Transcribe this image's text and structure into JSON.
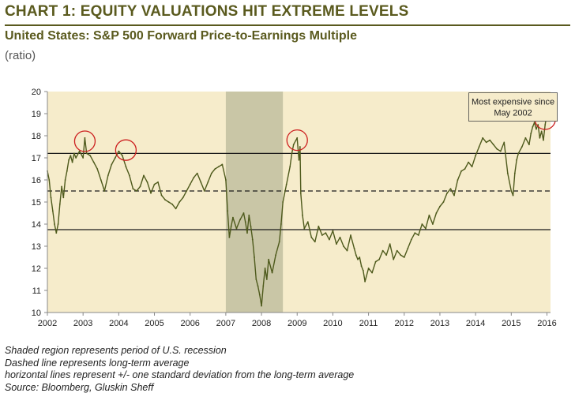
{
  "header": {
    "title": "CHART 1: EQUITY VALUATIONS HIT EXTREME LEVELS",
    "subtitle": "United States:  S&P 500 Forward Price-to-Earnings Multiple",
    "unit": "(ratio)"
  },
  "colors": {
    "plot_background": "#f6eccb",
    "recession_shade": "#c9c6a6",
    "series_line": "#4e5a1c",
    "reference_lines": "#1a1a1a",
    "highlight_circles": "#cc1f1f",
    "title_text": "#5a5a1e"
  },
  "chart_data": {
    "type": "line",
    "title": "United States:  S&P 500 Forward Price-to-Earnings Multiple",
    "ylabel": "(ratio)",
    "xlabel": "",
    "xlim": [
      2002,
      2016.1
    ],
    "ylim": [
      10,
      20
    ],
    "x_ticks": [
      "2002",
      "2003",
      "2004",
      "2005",
      "2006",
      "2007",
      "2008",
      "2009",
      "2010",
      "2011",
      "2012",
      "2013",
      "2014",
      "2015",
      "2016"
    ],
    "y_ticks": [
      "10",
      "11",
      "12",
      "13",
      "14",
      "15",
      "16",
      "17",
      "18",
      "19",
      "20"
    ],
    "grid": false,
    "recession": {
      "start": 2007.0,
      "end": 2008.6
    },
    "reference_lines": {
      "long_term_average": 15.5,
      "upper_one_std": 17.2,
      "lower_one_std": 13.75
    },
    "highlights": [
      {
        "x": 2003.05,
        "y": 17.75
      },
      {
        "x": 2004.2,
        "y": 17.35
      },
      {
        "x": 2009.0,
        "y": 17.8
      },
      {
        "x": 2015.95,
        "y": 18.75
      }
    ],
    "annotation": {
      "text": [
        "Most expensive since",
        "May 2002"
      ],
      "x": 2015.05,
      "y": 19.3
    },
    "series": [
      {
        "x": [
          2002.0,
          2002.05,
          2002.1,
          2002.15,
          2002.2,
          2002.25,
          2002.3,
          2002.35,
          2002.4,
          2002.45,
          2002.5,
          2002.55,
          2002.6,
          2002.65,
          2002.7,
          2002.75,
          2002.8,
          2002.9,
          2003.0,
          2003.05,
          2003.1,
          2003.2,
          2003.3,
          2003.4,
          2003.5,
          2003.6,
          2003.7,
          2003.8,
          2003.9,
          2004.0,
          2004.1,
          2004.2,
          2004.3,
          2004.4,
          2004.5,
          2004.6,
          2004.7,
          2004.8,
          2004.9,
          2005.0,
          2005.1,
          2005.2,
          2005.3,
          2005.4,
          2005.5,
          2005.6,
          2005.7,
          2005.8,
          2005.9,
          2006.0,
          2006.1,
          2006.2,
          2006.3,
          2006.4,
          2006.5,
          2006.6,
          2006.7,
          2006.8,
          2006.9,
          2007.0,
          2007.05,
          2007.1,
          2007.15,
          2007.2,
          2007.3,
          2007.4,
          2007.5,
          2007.55,
          2007.6,
          2007.65,
          2007.7,
          2007.75,
          2007.8,
          2007.85,
          2007.9,
          2007.95,
          2008.0,
          2008.05,
          2008.1,
          2008.15,
          2008.2,
          2008.3,
          2008.4,
          2008.5,
          2008.55,
          2008.6,
          2008.7,
          2008.8,
          2008.85,
          2008.9,
          2009.0,
          2009.05,
          2009.08,
          2009.1,
          2009.15,
          2009.2,
          2009.3,
          2009.4,
          2009.5,
          2009.6,
          2009.7,
          2009.8,
          2009.9,
          2010.0,
          2010.1,
          2010.2,
          2010.3,
          2010.4,
          2010.5,
          2010.6,
          2010.65,
          2010.7,
          2010.75,
          2010.8,
          2010.85,
          2010.9,
          2011.0,
          2011.1,
          2011.2,
          2011.3,
          2011.4,
          2011.5,
          2011.6,
          2011.7,
          2011.8,
          2011.9,
          2012.0,
          2012.1,
          2012.2,
          2012.3,
          2012.4,
          2012.5,
          2012.6,
          2012.7,
          2012.8,
          2012.9,
          2013.0,
          2013.1,
          2013.2,
          2013.3,
          2013.4,
          2013.5,
          2013.6,
          2013.7,
          2013.8,
          2013.9,
          2014.0,
          2014.1,
          2014.2,
          2014.3,
          2014.4,
          2014.5,
          2014.6,
          2014.7,
          2014.8,
          2014.9,
          2015.0,
          2015.05,
          2015.1,
          2015.15,
          2015.2,
          2015.3,
          2015.4,
          2015.5,
          2015.55,
          2015.6,
          2015.65,
          2015.7,
          2015.75,
          2015.8,
          2015.85,
          2015.9,
          2015.95,
          2016.0
        ],
        "values": [
          16.4,
          16.0,
          15.2,
          14.6,
          14.0,
          13.6,
          14.0,
          14.9,
          15.7,
          15.2,
          16.0,
          16.4,
          16.9,
          17.1,
          16.8,
          17.2,
          17.0,
          17.3,
          17.0,
          17.9,
          17.2,
          17.1,
          16.8,
          16.5,
          16.0,
          15.5,
          16.2,
          16.7,
          17.0,
          17.3,
          17.1,
          16.6,
          16.2,
          15.6,
          15.5,
          15.7,
          16.2,
          15.9,
          15.4,
          15.8,
          15.9,
          15.3,
          15.1,
          15.0,
          14.9,
          14.7,
          15.0,
          15.2,
          15.5,
          15.8,
          16.1,
          16.3,
          15.9,
          15.5,
          15.9,
          16.3,
          16.5,
          16.6,
          16.7,
          16.0,
          14.6,
          13.4,
          13.9,
          14.3,
          13.8,
          14.2,
          14.5,
          14.1,
          13.6,
          14.4,
          13.9,
          13.3,
          12.5,
          11.5,
          11.2,
          10.8,
          10.3,
          11.2,
          12.0,
          11.5,
          12.4,
          11.8,
          12.6,
          13.2,
          14.0,
          15.0,
          15.8,
          16.6,
          17.2,
          17.6,
          17.9,
          16.9,
          17.5,
          15.4,
          14.4,
          13.8,
          14.1,
          13.4,
          13.2,
          13.9,
          13.5,
          13.6,
          13.3,
          13.7,
          13.1,
          13.4,
          13.0,
          12.8,
          13.5,
          12.9,
          12.6,
          12.4,
          12.5,
          12.1,
          11.9,
          11.4,
          12.0,
          11.8,
          12.3,
          12.4,
          12.8,
          12.6,
          13.1,
          12.4,
          12.8,
          12.6,
          12.5,
          12.9,
          13.3,
          13.6,
          13.5,
          14.0,
          13.8,
          14.4,
          14.0,
          14.5,
          14.8,
          15.0,
          15.4,
          15.6,
          15.3,
          16.0,
          16.4,
          16.5,
          16.8,
          16.6,
          17.1,
          17.5,
          17.9,
          17.7,
          17.8,
          17.6,
          17.4,
          17.3,
          17.7,
          16.3,
          15.5,
          15.3,
          16.3,
          16.9,
          17.2,
          17.5,
          17.9,
          17.6,
          18.1,
          18.4,
          18.6,
          18.3,
          18.5,
          17.9,
          18.2,
          17.8,
          18.5,
          19.0
        ]
      }
    ]
  },
  "notes": [
    "Shaded region represents period of U.S. recession",
    "Dashed line represents long-term average",
    "horizontal lines represent +/- one standard deviation from the long-term average",
    "Source: Bloomberg, Gluskin Sheff"
  ]
}
